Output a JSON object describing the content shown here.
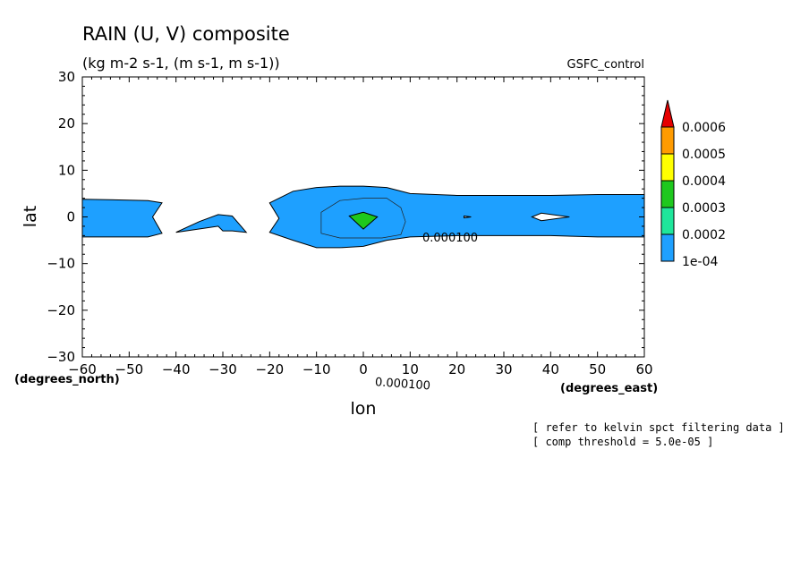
{
  "chart_data": {
    "type": "contour",
    "title": "RAIN (U, V) composite",
    "subtitle": "(kg m-2 s-1, (m s-1, m s-1))",
    "model": "GSFC_control",
    "xlabel": "lon",
    "ylabel": "lat",
    "xunits": "(degrees_east)",
    "yunits": "(degrees_north)",
    "xlim": [
      -60,
      60
    ],
    "ylim": [
      -30,
      30
    ],
    "xticks": [
      -60,
      -50,
      -40,
      -30,
      -20,
      -10,
      0,
      10,
      20,
      30,
      40,
      50,
      60
    ],
    "yticks": [
      -30,
      -20,
      -10,
      0,
      10,
      20,
      30
    ],
    "contour_labels": [
      "0.000100",
      "0.000100"
    ],
    "colorbar": {
      "levels": [
        "1e-04",
        "0.0002",
        "0.0003",
        "0.0004",
        "0.0005",
        "0.0006"
      ],
      "colors": [
        "#1ea0ff",
        "#1ee69b",
        "#1ec81e",
        "#ffff00",
        "#ff9b00",
        "#e60000"
      ]
    },
    "regions": [
      {
        "name": "west-band",
        "level": "1e-04",
        "lon": [
          -60,
          -46,
          -43,
          -45,
          -43,
          -46,
          -60
        ],
        "lat": [
          3.8,
          3.5,
          3.0,
          0,
          -3.5,
          -4.3,
          -4.3
        ]
      },
      {
        "name": "patch-35w",
        "level": "1e-04",
        "lon": [
          -40,
          -35,
          -31,
          -28,
          -25,
          -28,
          -30,
          -31,
          -40
        ],
        "lat": [
          -3.3,
          -1.0,
          0.5,
          0.2,
          -3.3,
          -3.0,
          -3.0,
          -2.0,
          -3.3
        ]
      },
      {
        "name": "main-band",
        "level": "1e-04",
        "lon": [
          -20,
          -15,
          -10,
          -5,
          0,
          5,
          10,
          20,
          30,
          40,
          50,
          60,
          60,
          50,
          40,
          30,
          20,
          10,
          5,
          0,
          -5,
          -10,
          -15,
          -20,
          -18
        ],
        "lat": [
          3.0,
          5.5,
          6.3,
          6.6,
          6.6,
          6.3,
          5.0,
          4.6,
          4.6,
          4.6,
          4.8,
          4.8,
          -4.3,
          -4.3,
          -4.0,
          -4.0,
          -4.0,
          -4.3,
          -5.0,
          -6.3,
          -6.6,
          -6.6,
          -5.0,
          -3.3,
          -0.3
        ]
      },
      {
        "name": "center-peak",
        "level": "0.0003",
        "lon": [
          -3,
          0,
          3,
          0
        ],
        "lat": [
          0.2,
          1.0,
          0.0,
          -2.6
        ]
      },
      {
        "name": "east-hole",
        "level": "below",
        "lon": [
          36,
          38,
          44,
          38
        ],
        "lat": [
          0.0,
          0.8,
          0.0,
          -0.8
        ]
      },
      {
        "name": "blip-22e",
        "level": "below",
        "lon": [
          21.5,
          23,
          21.5
        ],
        "lat": [
          0.2,
          0.0,
          -0.2
        ]
      }
    ],
    "inner_contour": {
      "level": "0.0002",
      "lon": [
        -9,
        -5,
        0,
        5,
        8,
        9,
        8,
        4,
        0,
        -5,
        -9,
        -9
      ],
      "lat": [
        1.0,
        3.5,
        4.0,
        4.0,
        2.0,
        -1.0,
        -3.8,
        -4.5,
        -4.5,
        -4.5,
        -3.5,
        0.0
      ]
    },
    "notes": [
      "[ refer to kelvin spct filtering data ]",
      "[ comp threshold = 5.0e-05 ]"
    ]
  }
}
